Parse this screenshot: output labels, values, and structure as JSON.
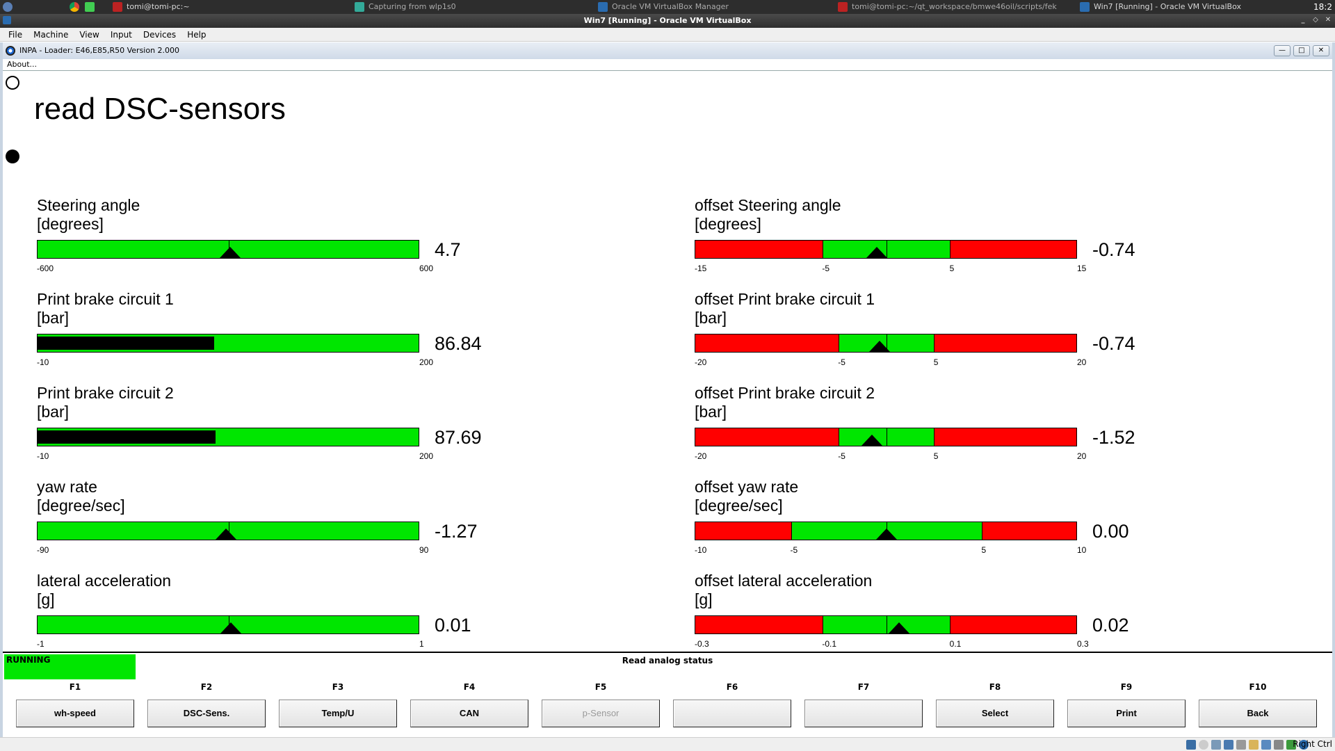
{
  "taskbar": {
    "items": [
      "tomi@tomi-pc:~",
      "Capturing from wlp1s0",
      "Oracle VM VirtualBox Manager",
      "tomi@tomi-pc:~/qt_workspace/bmwe46oil/scripts/fek",
      "Win7 [Running] - Oracle VM VirtualBox"
    ],
    "clock": "18:2"
  },
  "vbox": {
    "title": "Win7 [Running] - Oracle VM VirtualBox",
    "menu": [
      "File",
      "Machine",
      "View",
      "Input",
      "Devices",
      "Help"
    ],
    "host_key": "Right Ctrl"
  },
  "guest": {
    "title": "INPA - Loader:  E46,E85,R50 Version 2.000",
    "about": "About...",
    "page_title": "read DSC-sensors"
  },
  "gauges_left": [
    {
      "label": "Steering angle",
      "unit": "[degrees]",
      "min": "-600",
      "max": "600",
      "min_v": -600,
      "max_v": 600,
      "value": "4.7",
      "value_v": 4.7,
      "mode": "pointer"
    },
    {
      "label": "Print brake circuit 1",
      "unit": "[bar]",
      "min": "-10",
      "max": "200",
      "min_v": -10,
      "max_v": 200,
      "value": "86.84",
      "value_v": 86.84,
      "mode": "fill"
    },
    {
      "label": "Print brake circuit 2",
      "unit": "[bar]",
      "min": "-10",
      "max": "200",
      "min_v": -10,
      "max_v": 200,
      "value": "87.69",
      "value_v": 87.69,
      "mode": "fill"
    },
    {
      "label": "yaw rate",
      "unit": "[degree/sec]",
      "min": "-90",
      "max": "90",
      "min_v": -90,
      "max_v": 90,
      "value": "-1.27",
      "value_v": -1.27,
      "mode": "pointer"
    },
    {
      "label": "lateral acceleration",
      "unit": "[g]",
      "min": "-1",
      "max": "1",
      "min_v": -1,
      "max_v": 1,
      "value": "0.01",
      "value_v": 0.01,
      "mode": "pointer"
    }
  ],
  "gauges_right": [
    {
      "label": "offset Steering angle",
      "unit": "[degrees]",
      "min": "-15",
      "max": "15",
      "lo": "-5",
      "hi": "5",
      "min_v": -15,
      "max_v": 15,
      "lo_v": -5,
      "hi_v": 5,
      "value": "-0.74",
      "value_v": -0.74
    },
    {
      "label": "offset Print brake circuit 1",
      "unit": "[bar]",
      "min": "-20",
      "max": "20",
      "lo": "-5",
      "hi": "5",
      "min_v": -20,
      "max_v": 20,
      "lo_v": -5,
      "hi_v": 5,
      "value": "-0.74",
      "value_v": -0.74
    },
    {
      "label": "offset Print brake circuit 2",
      "unit": "[bar]",
      "min": "-20",
      "max": "20",
      "lo": "-5",
      "hi": "5",
      "min_v": -20,
      "max_v": 20,
      "lo_v": -5,
      "hi_v": 5,
      "value": "-1.52",
      "value_v": -1.52
    },
    {
      "label": "offset yaw rate",
      "unit": "[degree/sec]",
      "min": "-10",
      "max": "10",
      "lo": "-5",
      "hi": "5",
      "min_v": -10,
      "max_v": 10,
      "lo_v": -5,
      "hi_v": 5,
      "value": "0.00",
      "value_v": 0.0
    },
    {
      "label": "offset lateral acceleration",
      "unit": "[g]",
      "min": "-0.3",
      "max": "0.3",
      "lo": "-0.1",
      "hi": "0.1",
      "min_v": -0.3,
      "max_v": 0.3,
      "lo_v": -0.1,
      "hi_v": 0.1,
      "value": "0.02",
      "value_v": 0.02
    }
  ],
  "status": {
    "running": "RUNNING",
    "text": "Read analog status"
  },
  "fkeys": [
    {
      "key": "F1",
      "label": "wh-speed",
      "enabled": true
    },
    {
      "key": "F2",
      "label": "DSC-Sens.",
      "enabled": true
    },
    {
      "key": "F3",
      "label": "Temp/U",
      "enabled": true
    },
    {
      "key": "F4",
      "label": "CAN",
      "enabled": true
    },
    {
      "key": "F5",
      "label": "p-Sensor",
      "enabled": false
    },
    {
      "key": "F6",
      "label": "",
      "enabled": true
    },
    {
      "key": "F7",
      "label": "",
      "enabled": true
    },
    {
      "key": "F8",
      "label": "Select",
      "enabled": true
    },
    {
      "key": "F9",
      "label": "Print",
      "enabled": true
    },
    {
      "key": "F10",
      "label": "Back",
      "enabled": true
    }
  ],
  "colors": {
    "ok": "#00e600",
    "bad": "#ff0000",
    "pointer": "#000000"
  }
}
